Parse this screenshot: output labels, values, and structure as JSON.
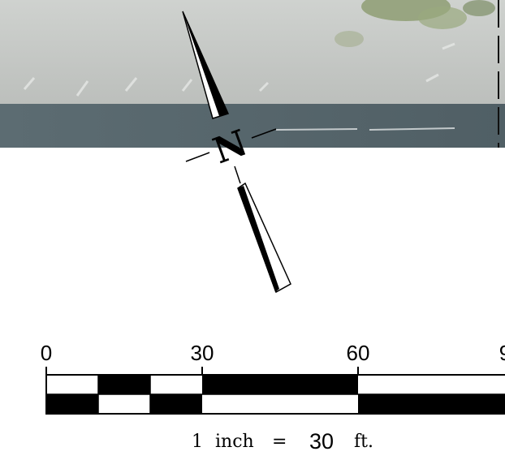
{
  "colors": {
    "pavement": "#c3c6c3",
    "water": "#56666c",
    "vegetation": "#8e9e73",
    "ink": "#000000",
    "paper": "#ffffff"
  },
  "north_arrow": {
    "letter": "N",
    "rotation_deg": -20
  },
  "scale_bar": {
    "tick_labels": [
      "0",
      "30",
      "60",
      "9"
    ],
    "caption": {
      "prefix": "1",
      "unit_word": "inch",
      "equals": "=",
      "value": "30",
      "unit": "ft."
    }
  }
}
